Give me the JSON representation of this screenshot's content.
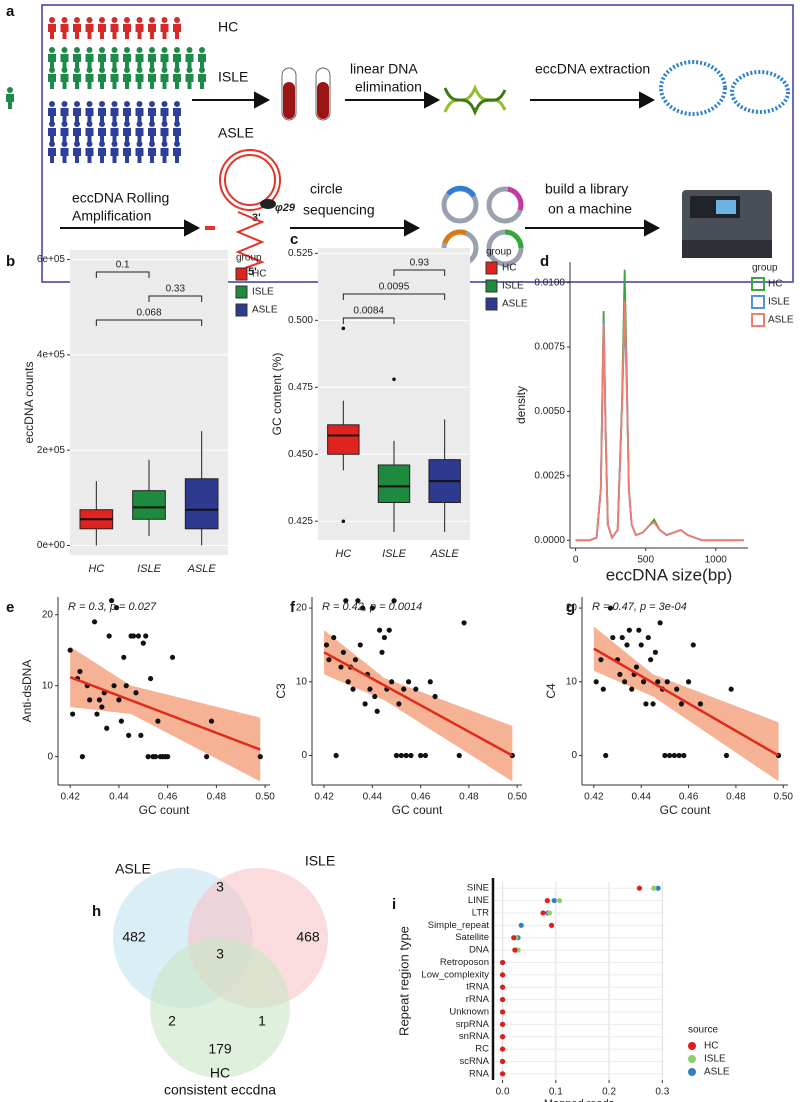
{
  "diagram": {
    "panel": "a",
    "groups": [
      "HC",
      "ISLE",
      "ASLE"
    ],
    "steps": [
      [
        "linear DNA",
        "elimination"
      ],
      [
        "eccDNA extraction"
      ],
      [
        "eccDNA Rolling",
        "Amplification"
      ],
      [
        "circle",
        "sequencing"
      ],
      [
        "build a library",
        "on a machine"
      ]
    ],
    "labels": [
      "3'",
      "5'",
      "φ29"
    ]
  },
  "chart_data": [
    {
      "panel": "b",
      "type": "box",
      "y_label": "eccDNA counts",
      "categories": [
        "HC",
        "ISLE",
        "ASLE"
      ],
      "colors": [
        "#e0231f",
        "#1e8a3e",
        "#2e3a8f"
      ],
      "boxes": [
        {
          "min": 0,
          "q1": 35000,
          "median": 55000,
          "q3": 75000,
          "max": 135000
        },
        {
          "min": 20000,
          "q1": 55000,
          "median": 80000,
          "q3": 115000,
          "max": 180000
        },
        {
          "min": 0,
          "q1": 35000,
          "median": 75000,
          "q3": 140000,
          "max": 240000
        }
      ],
      "comparisons": [
        {
          "pair": [
            "HC",
            "ISLE"
          ],
          "p": 0.1
        },
        {
          "pair": [
            "ISLE",
            "ASLE"
          ],
          "p": 0.33
        },
        {
          "pair": [
            "HC",
            "ASLE"
          ],
          "p": 0.068
        }
      ],
      "ylim": [
        -20000,
        620000
      ],
      "yticks": [
        {
          "value": 0,
          "label": "0e+00"
        },
        {
          "value": 200000,
          "label": "2e+05"
        },
        {
          "value": 400000,
          "label": "4e+05"
        },
        {
          "value": 600000,
          "label": "6e+05"
        }
      ],
      "legend_title": "group",
      "grid": true
    },
    {
      "panel": "c",
      "type": "box",
      "y_label": "GC content (%)",
      "categories": [
        "HC",
        "ISLE",
        "ASLE"
      ],
      "colors": [
        "#e0231f",
        "#1e8a3e",
        "#2e3a8f"
      ],
      "boxes": [
        {
          "min": 0.444,
          "q1": 0.45,
          "median": 0.457,
          "q3": 0.461,
          "max": 0.47,
          "outliers": [
            0.497,
            0.425
          ]
        },
        {
          "min": 0.421,
          "q1": 0.432,
          "median": 0.438,
          "q3": 0.446,
          "max": 0.455,
          "outliers": [
            0.478
          ]
        },
        {
          "min": 0.421,
          "q1": 0.432,
          "median": 0.44,
          "q3": 0.448,
          "max": 0.463
        }
      ],
      "comparisons": [
        {
          "pair": [
            "ISLE",
            "ASLE"
          ],
          "p": 0.93
        },
        {
          "pair": [
            "HC",
            "ASLE"
          ],
          "p": 0.0095
        },
        {
          "pair": [
            "HC",
            "ISLE"
          ],
          "p": 0.0084
        }
      ],
      "ylim": [
        0.418,
        0.527
      ],
      "yticks": [
        0.425,
        {
          "value": 0.45,
          "label": "0.450"
        },
        0.475,
        {
          "value": 0.5,
          "label": "0.500"
        },
        0.525
      ],
      "legend_title": "group",
      "grid": true
    },
    {
      "panel": "d",
      "type": "line",
      "x_label": "eccDNA size(bp)",
      "y_label": "density",
      "x": [
        0,
        100,
        150,
        180,
        200,
        215,
        230,
        260,
        300,
        330,
        350,
        365,
        380,
        400,
        430,
        480,
        530,
        560,
        600,
        650,
        700,
        750,
        800,
        900,
        1000,
        1100,
        1200
      ],
      "series": [
        {
          "name": "HC",
          "color": "#3aa53a",
          "values": [
            0,
            0,
            0.0001,
            0.002,
            0.0089,
            0.004,
            0.0006,
            0.0001,
            0.0004,
            0.0052,
            0.0105,
            0.0065,
            0.002,
            0.0006,
            0.0002,
            0.0003,
            0.0006,
            0.0008,
            0.0004,
            0.0002,
            0.0003,
            0.0004,
            0.0002,
            0,
            0,
            0,
            0
          ]
        },
        {
          "name": "ISLE",
          "color": "#5b8fd6",
          "values": [
            0,
            0,
            0.0001,
            0.002,
            0.0086,
            0.004,
            0.0006,
            0.0001,
            0.0004,
            0.005,
            0.0088,
            0.006,
            0.002,
            0.0006,
            0.0002,
            0.0003,
            0.0006,
            0.0007,
            0.0004,
            0.0002,
            0.0003,
            0.0004,
            0.0002,
            0,
            0,
            0,
            0
          ]
        },
        {
          "name": "ASLE",
          "color": "#f07b70",
          "values": [
            0,
            0,
            0.0001,
            0.002,
            0.0084,
            0.004,
            0.0006,
            0.0001,
            0.0004,
            0.005,
            0.0093,
            0.006,
            0.002,
            0.0006,
            0.0002,
            0.0003,
            0.0006,
            0.0007,
            0.0004,
            0.0002,
            0.0003,
            0.0004,
            0.0002,
            0,
            0,
            0,
            0
          ]
        }
      ],
      "xlim": [
        -40,
        1230
      ],
      "xticks": [
        0,
        500,
        1000
      ],
      "ylim": [
        -0.0003,
        0.0108
      ],
      "yticks": [
        {
          "value": 0,
          "label": "0.0000"
        },
        {
          "value": 0.0025,
          "label": "0.0025"
        },
        {
          "value": 0.005,
          "label": "0.0050"
        },
        {
          "value": 0.0075,
          "label": "0.0075"
        },
        {
          "value": 0.01,
          "label": "0.0100"
        }
      ],
      "legend_title": "group"
    },
    {
      "panel": "e",
      "type": "scatter",
      "x_label": "GC count",
      "y_label": "Anti-dsDNA",
      "annotation": "R = 0.3, p = 0.027",
      "x": [
        0.42,
        0.421,
        0.423,
        0.424,
        0.425,
        0.427,
        0.428,
        0.43,
        0.431,
        0.432,
        0.433,
        0.434,
        0.435,
        0.436,
        0.437,
        0.438,
        0.439,
        0.44,
        0.441,
        0.442,
        0.443,
        0.444,
        0.445,
        0.446,
        0.447,
        0.448,
        0.449,
        0.45,
        0.451,
        0.452,
        0.453,
        0.454,
        0.455,
        0.456,
        0.457,
        0.458,
        0.459,
        0.46,
        0.462,
        0.476,
        0.478,
        0.498
      ],
      "values": [
        15,
        6,
        11,
        12,
        0,
        10,
        8,
        19,
        6,
        8,
        7,
        9,
        4,
        17,
        22,
        10,
        21,
        8,
        5,
        14,
        10,
        3,
        17,
        17,
        9,
        17,
        3,
        16,
        17,
        0,
        11,
        0,
        0,
        5,
        0,
        0,
        0,
        0,
        14,
        0,
        5,
        0
      ],
      "fit": {
        "x": [
          0.42,
          0.498
        ],
        "values": [
          11.2,
          1
        ]
      },
      "band": {
        "x": [
          0.42,
          0.445,
          0.498
        ],
        "lower": [
          7,
          6,
          -3.5
        ],
        "upper": [
          15.5,
          10,
          5.5
        ]
      },
      "color": "#111111",
      "fit_color": "#e02a1a",
      "band_color": "#f4a582",
      "xlim": [
        0.415,
        0.502
      ],
      "xticks": [
        0.42,
        0.44,
        0.46,
        0.48,
        {
          "value": 0.5,
          "label": "0.50"
        }
      ],
      "ylim": [
        -4,
        22.5
      ],
      "yticks": [
        0,
        10,
        20
      ]
    },
    {
      "panel": "f",
      "type": "scatter",
      "x_label": "GC count",
      "y_label": "C3",
      "annotation": "R = 0.42, p = 0.0014",
      "x": [
        0.421,
        0.422,
        0.424,
        0.425,
        0.427,
        0.428,
        0.429,
        0.43,
        0.431,
        0.432,
        0.433,
        0.434,
        0.435,
        0.436,
        0.437,
        0.438,
        0.439,
        0.44,
        0.441,
        0.442,
        0.443,
        0.444,
        0.445,
        0.446,
        0.447,
        0.448,
        0.449,
        0.45,
        0.451,
        0.452,
        0.453,
        0.454,
        0.455,
        0.456,
        0.458,
        0.46,
        0.462,
        0.464,
        0.466,
        0.476,
        0.478,
        0.498
      ],
      "values": [
        15,
        13,
        16,
        0,
        12,
        14,
        21,
        10,
        12,
        9,
        13,
        21,
        15,
        20,
        7,
        11,
        9,
        20,
        8,
        6,
        17,
        14,
        16,
        9,
        17,
        10,
        21,
        0,
        7,
        0,
        9,
        0,
        10,
        0,
        9,
        0,
        0,
        10,
        8,
        0,
        18,
        0
      ],
      "fit": {
        "x": [
          0.42,
          0.498
        ],
        "values": [
          14,
          0
        ]
      },
      "band": {
        "x": [
          0.42,
          0.445,
          0.498
        ],
        "lower": [
          11,
          7.5,
          -3.5
        ],
        "upper": [
          17,
          10.5,
          4
        ]
      },
      "color": "#111111",
      "fit_color": "#e02a1a",
      "band_color": "#f4a582",
      "xlim": [
        0.415,
        0.502
      ],
      "xticks": [
        0.42,
        0.44,
        0.46,
        0.48,
        {
          "value": 0.5,
          "label": "0.50"
        }
      ],
      "ylim": [
        -4,
        21.5
      ],
      "yticks": [
        0,
        10,
        20
      ]
    },
    {
      "panel": "g",
      "type": "scatter",
      "x_label": "GC count",
      "y_label": "C4",
      "annotation": "R = 0.47, p = 3e-04",
      "x": [
        0.421,
        0.423,
        0.424,
        0.425,
        0.427,
        0.428,
        0.43,
        0.431,
        0.432,
        0.433,
        0.434,
        0.435,
        0.436,
        0.437,
        0.438,
        0.439,
        0.44,
        0.441,
        0.442,
        0.443,
        0.444,
        0.445,
        0.446,
        0.447,
        0.448,
        0.449,
        0.45,
        0.451,
        0.452,
        0.454,
        0.455,
        0.456,
        0.457,
        0.458,
        0.46,
        0.462,
        0.465,
        0.476,
        0.478,
        0.498
      ],
      "values": [
        10,
        13,
        9,
        0,
        20,
        16,
        13,
        11,
        16,
        10,
        15,
        17,
        9,
        11,
        12,
        17,
        15,
        10,
        7,
        16,
        13,
        7,
        14,
        10,
        18,
        9,
        0,
        10,
        0,
        0,
        9,
        0,
        7,
        0,
        10,
        15,
        7,
        0,
        9,
        0
      ],
      "fit": {
        "x": [
          0.42,
          0.498
        ],
        "values": [
          14.5,
          0
        ]
      },
      "band": {
        "x": [
          0.42,
          0.445,
          0.498
        ],
        "lower": [
          11.5,
          8,
          -3.5
        ],
        "upper": [
          17.5,
          11,
          4.5
        ]
      },
      "color": "#111111",
      "fit_color": "#e02a1a",
      "band_color": "#f4a582",
      "xlim": [
        0.415,
        0.502
      ],
      "xticks": [
        0.42,
        0.44,
        0.46,
        0.48,
        {
          "value": 0.5,
          "label": "0.50"
        }
      ],
      "ylim": [
        -4,
        21.5
      ],
      "yticks": [
        0,
        10,
        20
      ]
    },
    {
      "panel": "h",
      "type": "venn",
      "sets": [
        "ASLE",
        "ISLE",
        "HC"
      ],
      "subtitle": "consistent eccdna",
      "colors": [
        "#bfe3ef",
        "#f6c4c8",
        "#c9e6c4"
      ],
      "values": [
        482,
        468,
        179,
        3,
        3,
        2,
        1
      ]
    },
    {
      "panel": "i",
      "type": "dot",
      "x_label": "Mapped reads",
      "y_label": "Repeat region type",
      "categories": [
        "SINE",
        "LINE",
        "LTR",
        "Simple_repeat",
        "Satellite",
        "DNA",
        "Retroposon",
        "Low_complexity",
        "tRNA",
        "rRNA",
        "Unknown",
        "srpRNA",
        "snRNA",
        "RC",
        "scRNA",
        "RNA"
      ],
      "series": [
        {
          "name": "HC",
          "color": "#e41a1c",
          "values": [
            0.257,
            0.084,
            0.076,
            0.092,
            0.021,
            0.023,
            0,
            0,
            0,
            0,
            0,
            0,
            0,
            0,
            0,
            0
          ]
        },
        {
          "name": "ISLE",
          "color": "#8fce6a",
          "values": [
            0.284,
            0.107,
            0.088,
            0.092,
            0.025,
            0.029,
            0,
            0,
            0,
            0,
            0,
            0,
            0,
            0,
            0,
            0
          ]
        },
        {
          "name": "ASLE",
          "color": "#2f7fc1",
          "values": [
            0.292,
            0.097,
            0.085,
            0.035,
            0.029,
            0.027,
            0,
            0,
            0,
            0,
            0,
            0,
            0,
            0,
            0,
            0
          ]
        }
      ],
      "xlim": [
        -0.018,
        0.305
      ],
      "xticks": [
        {
          "value": 0,
          "label": "0.0"
        },
        0.1,
        0.2,
        0.3
      ],
      "legend_title": "source",
      "grid": true
    }
  ]
}
